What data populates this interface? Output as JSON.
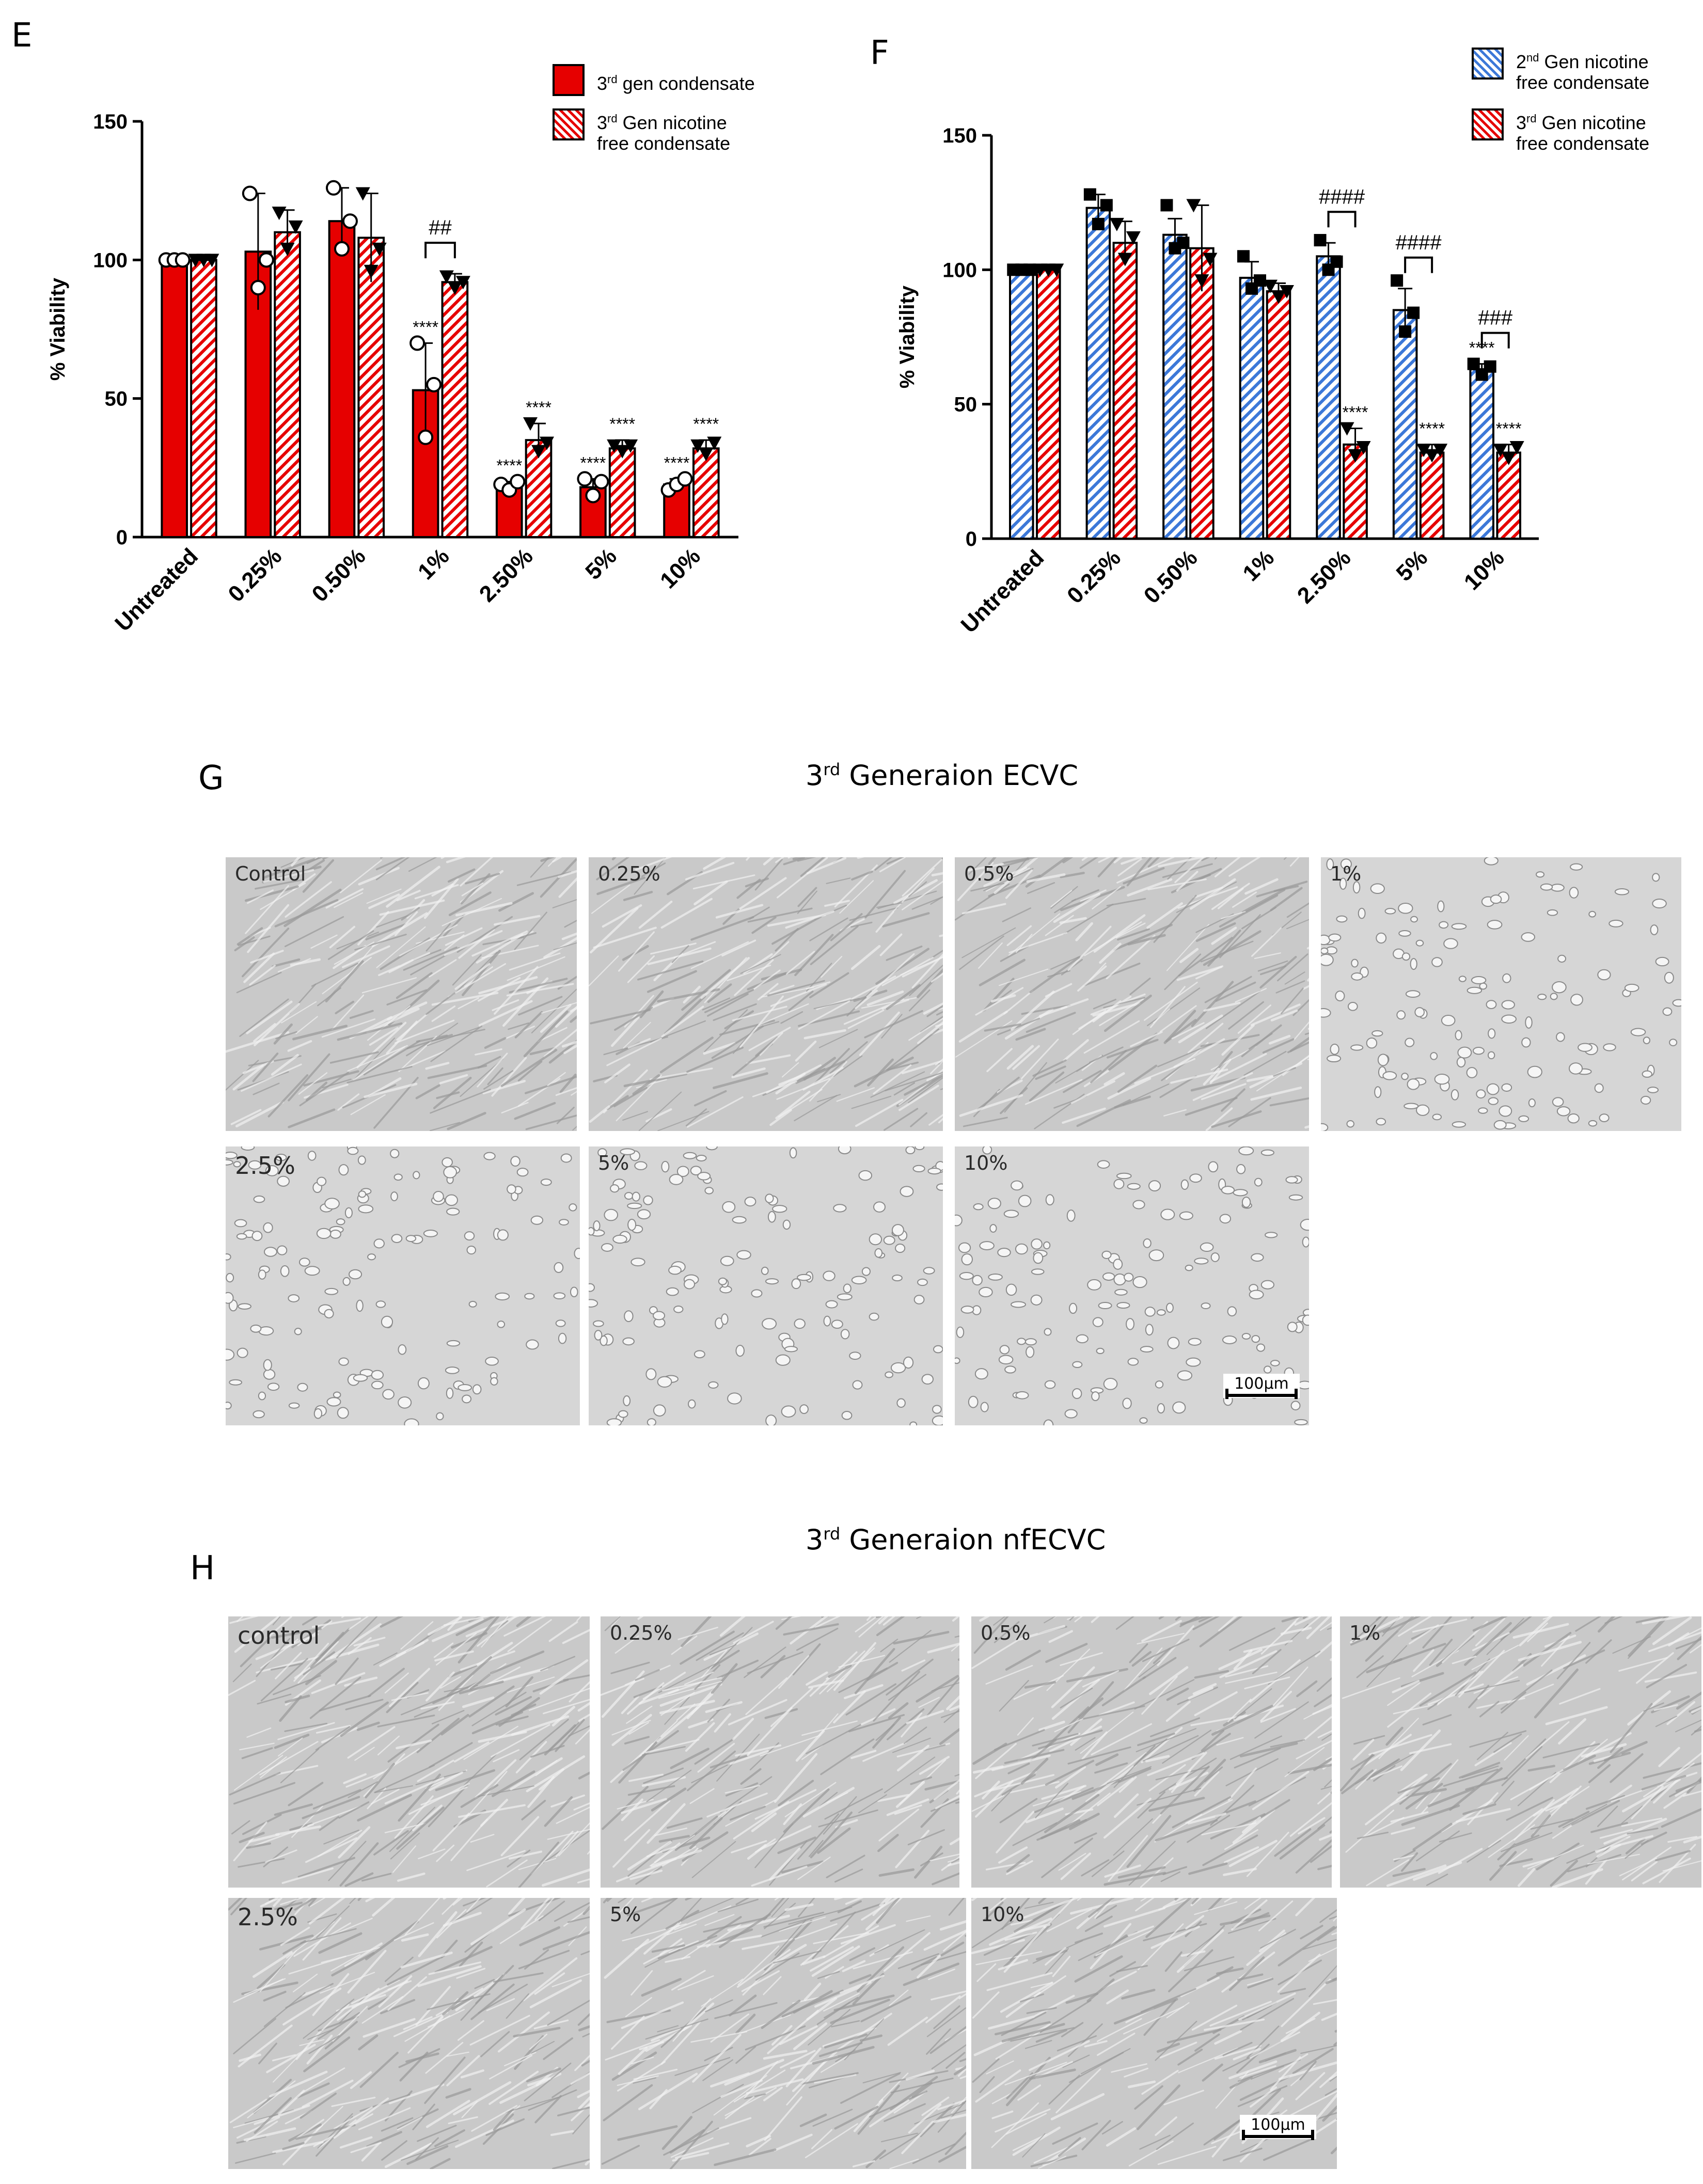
{
  "panels": {
    "E": {
      "letter": "E"
    },
    "F": {
      "letter": "F"
    },
    "G": {
      "letter": "G",
      "title_prefix": "3",
      "title_sup": "rd",
      "title_suffix": " Generaion ECVC"
    },
    "H": {
      "letter": "H",
      "title_prefix": "3",
      "title_sup": "rd",
      "title_suffix": " Generaion nfECVC"
    }
  },
  "chart_data": [
    {
      "type": "bar",
      "panel": "E",
      "ylabel": "% Viability",
      "ylim": [
        0,
        150
      ],
      "yticks": [
        "0",
        "50",
        "100",
        "150"
      ],
      "categories": [
        "Untreated",
        "0.25%",
        "0.50%",
        "1%",
        "2.50%",
        "5%",
        "10%"
      ],
      "series": [
        {
          "name": "3rd gen condensate",
          "legend_prefix": "3",
          "legend_sup": "rd",
          "legend_rest": " gen condensate",
          "color": "#e60000",
          "pattern": "solid",
          "marker": "circle",
          "values": [
            100,
            103,
            114,
            53,
            18,
            18,
            19
          ],
          "errors": [
            0,
            21,
            12,
            17,
            2,
            3,
            2
          ],
          "points": [
            [
              100,
              100,
              100
            ],
            [
              124,
              90,
              100
            ],
            [
              126,
              104,
              114
            ],
            [
              70,
              36,
              55
            ],
            [
              19,
              17,
              20
            ],
            [
              21,
              15,
              20
            ],
            [
              17,
              19,
              21
            ]
          ],
          "stars": [
            "",
            "",
            "",
            "****",
            "****",
            "****",
            "****"
          ]
        },
        {
          "name": "3rd Gen nicotine free condensate",
          "legend_prefix": "3",
          "legend_sup": "rd",
          "legend_rest": " Gen nicotine",
          "legend_line2": "free condensate",
          "color": "#e60000",
          "pattern": "hatch",
          "marker": "triangle",
          "values": [
            100,
            110,
            108,
            92,
            35,
            32,
            32
          ],
          "errors": [
            0,
            8,
            16,
            3,
            6,
            3,
            3
          ],
          "points": [
            [
              100,
              100,
              100
            ],
            [
              117,
              104,
              112
            ],
            [
              124,
              96,
              104
            ],
            [
              94,
              90,
              92
            ],
            [
              41,
              31,
              34
            ],
            [
              33,
              31,
              33
            ],
            [
              33,
              30,
              34
            ]
          ],
          "stars": [
            "",
            "",
            "",
            "",
            "****",
            "****",
            "****"
          ]
        }
      ],
      "brackets": [
        {
          "from": 3,
          "label": "##"
        }
      ]
    },
    {
      "type": "bar",
      "panel": "F",
      "ylabel": "% Viability",
      "ylim": [
        0,
        150
      ],
      "yticks": [
        "0",
        "50",
        "100",
        "150"
      ],
      "categories": [
        "Untreated",
        "0.25%",
        "0.50%",
        "1%",
        "2.50%",
        "5%",
        "10%"
      ],
      "series": [
        {
          "name": "2nd Gen nicotine free condensate",
          "legend_prefix": "2",
          "legend_sup": "nd",
          "legend_rest": " Gen nicotine",
          "legend_line2": "free condensate",
          "color": "#3c78d8",
          "pattern": "hatch",
          "marker": "square",
          "values": [
            100,
            123,
            113,
            97,
            105,
            85,
            63
          ],
          "errors": [
            0,
            5,
            6,
            6,
            5,
            8,
            2
          ],
          "points": [
            [
              100,
              100,
              100
            ],
            [
              128,
              117,
              124
            ],
            [
              124,
              108,
              110
            ],
            [
              105,
              93,
              96
            ],
            [
              111,
              100,
              103
            ],
            [
              96,
              77,
              84
            ],
            [
              65,
              61,
              64
            ]
          ],
          "stars": [
            "",
            "",
            "",
            "",
            "",
            "",
            "****"
          ]
        },
        {
          "name": "3rd Gen nicotine free condensate",
          "legend_prefix": "3",
          "legend_sup": "rd",
          "legend_rest": " Gen nicotine",
          "legend_line2": "free condensate",
          "color": "#e60000",
          "pattern": "hatch",
          "marker": "triangle",
          "values": [
            100,
            110,
            108,
            92,
            35,
            32,
            32
          ],
          "errors": [
            0,
            8,
            16,
            3,
            6,
            3,
            3
          ],
          "points": [
            [
              100,
              100,
              100
            ],
            [
              117,
              104,
              112
            ],
            [
              124,
              96,
              104
            ],
            [
              94,
              90,
              92
            ],
            [
              41,
              31,
              34
            ],
            [
              33,
              31,
              33
            ],
            [
              33,
              30,
              34
            ]
          ],
          "stars": [
            "",
            "",
            "",
            "",
            "****",
            "****",
            "****"
          ]
        }
      ],
      "brackets": [
        {
          "from": 4,
          "label": "####"
        },
        {
          "from": 5,
          "label": "####"
        },
        {
          "from": 6,
          "label": "###"
        }
      ]
    }
  ],
  "micrographs": {
    "G": [
      "Control",
      "0.25%",
      "0.5%",
      "1%",
      "2.5%",
      "5%",
      "10%"
    ],
    "H": [
      "control",
      "0.25%",
      "0.5%",
      "1%",
      "2.5%",
      "5%",
      "10%"
    ]
  },
  "scalebar": "100µm"
}
